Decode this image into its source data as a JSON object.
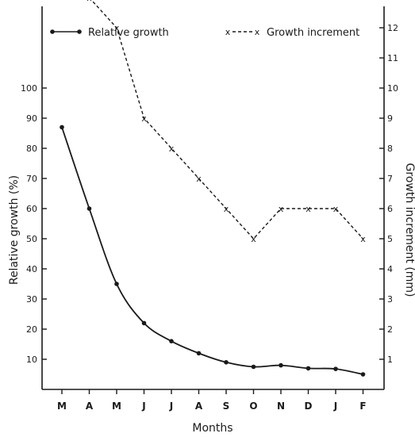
{
  "chart_data": {
    "type": "line",
    "xlabel": "Months",
    "ylabel_left": "Relative growth (%)",
    "ylabel_right": "Growth increment (mm)",
    "categories": [
      "M",
      "A",
      "M",
      "J",
      "J",
      "A",
      "S",
      "O",
      "N",
      "D",
      "J",
      "F"
    ],
    "left_axis": {
      "ylim": [
        0,
        130
      ],
      "ticks": [
        10,
        20,
        30,
        40,
        50,
        60,
        70,
        80,
        90,
        100
      ],
      "tick_labels": [
        "10",
        "20",
        "30",
        "40",
        "50",
        "60",
        "70",
        "80",
        "90",
        "100"
      ]
    },
    "right_axis": {
      "ylim": [
        0,
        13
      ],
      "ticks": [
        1,
        2,
        3,
        4,
        5,
        6,
        7,
        8,
        9,
        10,
        11,
        12
      ],
      "tick_labels": [
        "1",
        "2",
        "3",
        "4",
        "5",
        "6",
        "7",
        "8",
        "9",
        "10",
        "11",
        "12"
      ]
    },
    "series": [
      {
        "name": "Relative growth",
        "axis": "left",
        "marker": "dot",
        "line": "solid",
        "values": [
          87,
          60,
          35,
          22,
          16,
          12,
          9,
          7.5,
          8,
          7,
          6.8,
          5
        ]
      },
      {
        "name": "Growth increment",
        "axis": "right",
        "marker": "x",
        "line": "dashed",
        "values": [
          null,
          13,
          12,
          9,
          8,
          7,
          6,
          5,
          6,
          6,
          6,
          5
        ]
      }
    ],
    "legend": "top",
    "grid": false,
    "colors": {
      "ink": "#1a1a1a",
      "background": "#ffffff"
    }
  }
}
